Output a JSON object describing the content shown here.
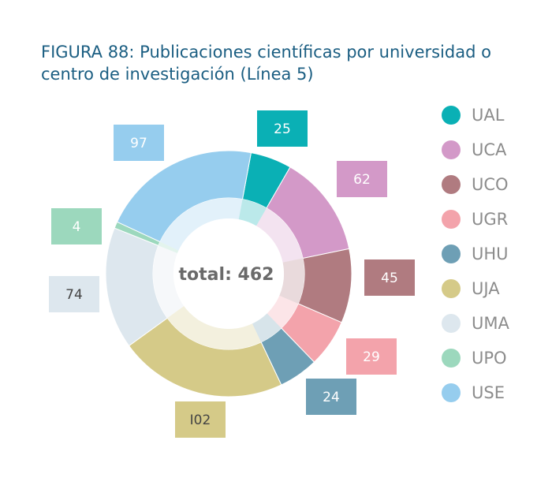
{
  "header": {
    "title_line1": "FIGURA 88: Publicaciones científicas por universidad o",
    "title_line2": "centro de investigación (Línea 5)"
  },
  "chart_data": {
    "type": "pie",
    "variant": "donut",
    "center_label": "total: 462",
    "total": 462,
    "categories": [
      "UAL",
      "UCA",
      "UCO",
      "UGR",
      "UHU",
      "UJA",
      "UMA",
      "UPO",
      "USE"
    ],
    "values": [
      25,
      62,
      45,
      29,
      24,
      102,
      74,
      4,
      97
    ],
    "value_labels": [
      "25",
      "62",
      "45",
      "29",
      "24",
      "I02",
      "74",
      "4",
      "97"
    ],
    "colors": [
      "#0ab0b5",
      "#d399c8",
      "#b07b80",
      "#f3a3ab",
      "#6e9fb5",
      "#d5ca88",
      "#dde7ee",
      "#9cd8bd",
      "#96cdee"
    ],
    "label_text_colors": [
      "#ffffff",
      "#ffffff",
      "#ffffff",
      "#ffffff",
      "#ffffff",
      "#444444",
      "#444444",
      "#ffffff",
      "#ffffff"
    ],
    "legend_position": "right"
  }
}
